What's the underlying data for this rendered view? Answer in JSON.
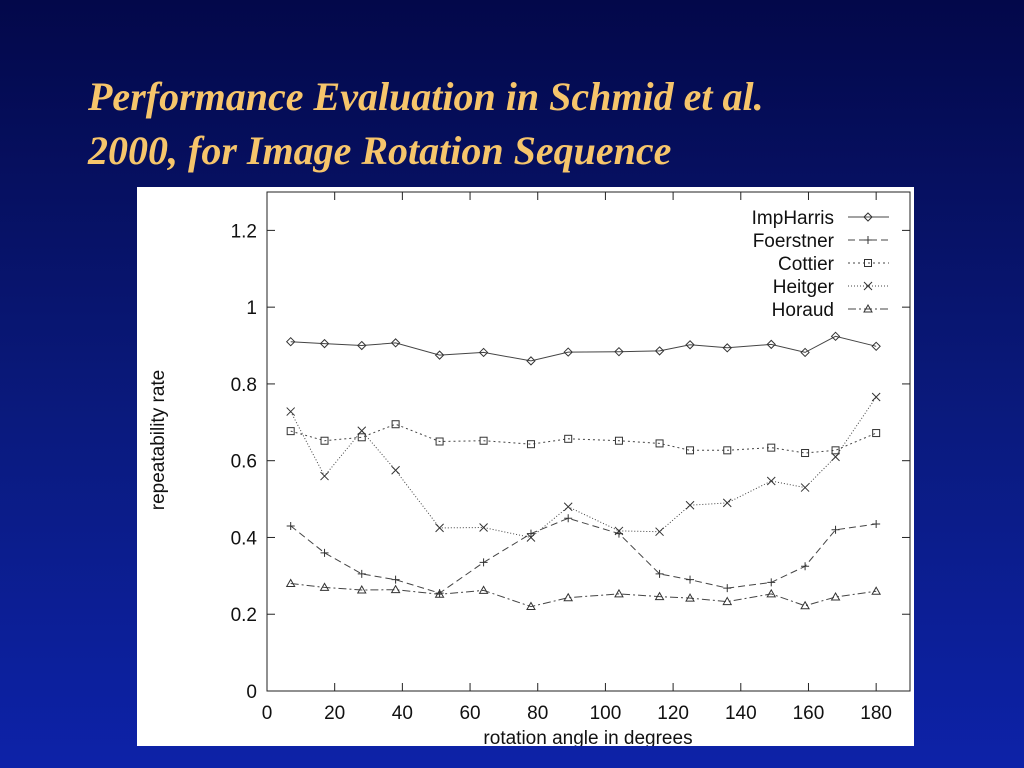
{
  "slide": {
    "title_line1": "Performance Evaluation in Schmid et al.",
    "title_line2": "2000, for Image Rotation Sequence",
    "background_colors": [
      "#03084a",
      "#0d22a8"
    ],
    "title_color": "#f6c56b"
  },
  "chart_data": {
    "type": "line",
    "title": "",
    "xlabel": "rotation angle in degrees",
    "ylabel": "repeatability rate",
    "xlim": [
      0,
      190
    ],
    "ylim": [
      0,
      1.3
    ],
    "x_ticks": [
      "0",
      "20",
      "40",
      "60",
      "80",
      "100",
      "120",
      "140",
      "160",
      "180"
    ],
    "y_ticks": [
      "0",
      "0.2",
      "0.4",
      "0.6",
      "0.8",
      "1",
      "1.2"
    ],
    "grid": false,
    "legend_position": "top-right",
    "x": [
      7,
      17,
      28,
      38,
      51,
      64,
      78,
      89,
      104,
      116,
      125,
      136,
      149,
      159,
      168,
      180
    ],
    "series": [
      {
        "name": "ImpHarris",
        "marker": "diamond",
        "dash": "solid",
        "values": [
          0.91,
          0.905,
          0.9,
          0.907,
          0.875,
          0.882,
          0.86,
          0.883,
          0.884,
          0.886,
          0.902,
          0.894,
          0.903,
          0.882,
          0.924,
          0.898
        ]
      },
      {
        "name": "Foerstner",
        "marker": "plus",
        "dash": "dashed",
        "values": [
          0.43,
          0.36,
          0.305,
          0.29,
          0.255,
          0.335,
          0.41,
          0.45,
          0.41,
          0.305,
          0.29,
          0.268,
          0.283,
          0.325,
          0.42,
          0.435
        ]
      },
      {
        "name": "Cottier",
        "marker": "square",
        "dash": "dotted",
        "values": [
          0.677,
          0.652,
          0.661,
          0.695,
          0.65,
          0.652,
          0.643,
          0.657,
          0.652,
          0.645,
          0.627,
          0.627,
          0.634,
          0.62,
          0.627,
          0.672
        ]
      },
      {
        "name": "Heitger",
        "marker": "cross",
        "dash": "fine-dotted",
        "values": [
          0.728,
          0.56,
          0.678,
          0.575,
          0.425,
          0.426,
          0.4,
          0.48,
          0.417,
          0.415,
          0.484,
          0.49,
          0.547,
          0.53,
          0.61,
          0.766
        ]
      },
      {
        "name": "Horaud",
        "marker": "triangle",
        "dash": "dash-dot",
        "values": [
          0.28,
          0.27,
          0.263,
          0.264,
          0.252,
          0.262,
          0.22,
          0.243,
          0.253,
          0.246,
          0.242,
          0.233,
          0.253,
          0.222,
          0.245,
          0.26
        ]
      }
    ]
  }
}
